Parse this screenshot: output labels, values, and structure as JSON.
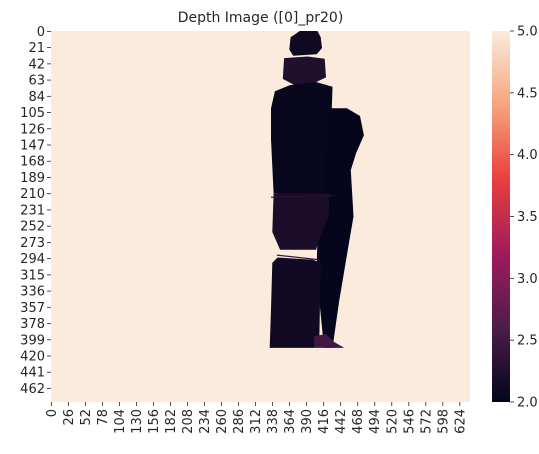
{
  "chart_data": {
    "type": "heatmap",
    "title": "Depth Image ([0]_pr20)",
    "xlabel": "",
    "ylabel": "",
    "x_tick_labels": [
      "0",
      "26",
      "52",
      "78",
      "104",
      "130",
      "156",
      "182",
      "208",
      "234",
      "260",
      "286",
      "312",
      "338",
      "364",
      "390",
      "416",
      "442",
      "468",
      "494",
      "520",
      "546",
      "572",
      "598",
      "624"
    ],
    "y_tick_labels": [
      "0",
      "21",
      "42",
      "63",
      "84",
      "105",
      "126",
      "147",
      "168",
      "189",
      "210",
      "231",
      "252",
      "273",
      "294",
      "315",
      "336",
      "357",
      "378",
      "399",
      "420",
      "441",
      "462"
    ],
    "x_range": [
      0,
      640
    ],
    "y_range": [
      0,
      480
    ],
    "colorbar": {
      "min": 2.0,
      "max": 5.0,
      "tick_labels": [
        "2.0",
        "2.5",
        "3.0",
        "3.5",
        "4.0",
        "4.5",
        "5.0"
      ],
      "colormap": "rocket",
      "color_stops": [
        "#03051a",
        "#4c1d4b",
        "#a11a5b",
        "#e83f3f",
        "#f6a47c",
        "#faebdd"
      ]
    },
    "background_depth": 5.0,
    "regions": [
      {
        "name": "head-top",
        "depth": 2.1,
        "points": [
          [
            380,
            0
          ],
          [
            407,
            0
          ],
          [
            412,
            8
          ],
          [
            414,
            22
          ],
          [
            406,
            30
          ],
          [
            370,
            32
          ],
          [
            364,
            24
          ],
          [
            366,
            8
          ]
        ]
      },
      {
        "name": "head-lower",
        "depth": 2.25,
        "points": [
          [
            356,
            35
          ],
          [
            392,
            33
          ],
          [
            418,
            36
          ],
          [
            420,
            60
          ],
          [
            395,
            70
          ],
          [
            372,
            70
          ],
          [
            354,
            62
          ]
        ]
      },
      {
        "name": "upper-body",
        "depth": 2.05,
        "points": [
          [
            342,
            78
          ],
          [
            365,
            70
          ],
          [
            405,
            66
          ],
          [
            430,
            72
          ],
          [
            425,
            210
          ],
          [
            395,
            212
          ],
          [
            340,
            210
          ],
          [
            336,
            140
          ],
          [
            336,
            100
          ]
        ]
      },
      {
        "name": "right-arm",
        "depth": 2.02,
        "points": [
          [
            425,
            100
          ],
          [
            452,
            100
          ],
          [
            472,
            110
          ],
          [
            478,
            135
          ],
          [
            466,
            158
          ],
          [
            458,
            180
          ],
          [
            462,
            240
          ],
          [
            456,
            270
          ],
          [
            448,
            310
          ],
          [
            440,
            350
          ],
          [
            430,
            410
          ],
          [
            417,
            410
          ],
          [
            410,
            350
          ],
          [
            406,
            300
          ],
          [
            408,
            235
          ],
          [
            416,
            210
          ],
          [
            420,
            165
          ],
          [
            422,
            120
          ]
        ]
      },
      {
        "name": "torso-mid",
        "depth": 2.2,
        "points": [
          [
            340,
            210
          ],
          [
            425,
            210
          ],
          [
            424,
            240
          ],
          [
            410,
            268
          ],
          [
            405,
            283
          ],
          [
            350,
            283
          ],
          [
            338,
            260
          ]
        ]
      },
      {
        "name": "lower-legs",
        "depth": 2.12,
        "points": [
          [
            338,
            300
          ],
          [
            346,
            293
          ],
          [
            400,
            296
          ],
          [
            412,
            300
          ],
          [
            410,
            395
          ],
          [
            402,
            410
          ],
          [
            334,
            410
          ],
          [
            336,
            360
          ]
        ]
      },
      {
        "name": "foot-glow",
        "depth": 2.5,
        "points": [
          [
            402,
            395
          ],
          [
            420,
            392
          ],
          [
            432,
            402
          ],
          [
            448,
            410
          ],
          [
            402,
            410
          ]
        ]
      }
    ]
  }
}
